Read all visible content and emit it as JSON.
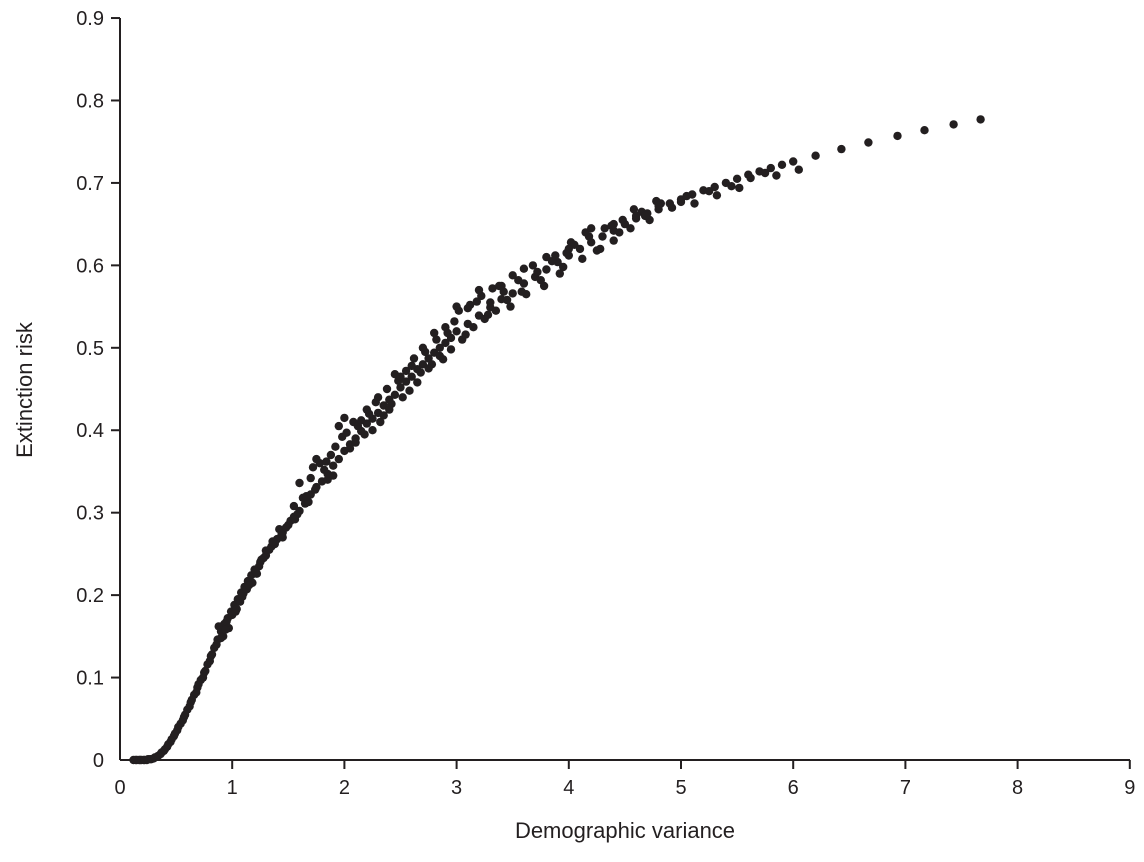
{
  "chart_data": {
    "type": "scatter",
    "title": "",
    "xlabel": "Demographic variance",
    "ylabel": "Extinction risk",
    "xlim": [
      0,
      9
    ],
    "ylim": [
      0,
      0.9
    ],
    "x_ticks": [
      "0",
      "1",
      "2",
      "3",
      "4",
      "5",
      "6",
      "7",
      "8",
      "9"
    ],
    "y_ticks": [
      "0",
      "0.1",
      "0.2",
      "0.3",
      "0.4",
      "0.5",
      "0.6",
      "0.7",
      "0.8",
      "0.9"
    ],
    "grid": false,
    "legend": "none",
    "marker_color": "#231f20",
    "series": [
      {
        "points": [
          [
            0.12,
            0.0
          ],
          [
            0.15,
            0.0
          ],
          [
            0.18,
            0.0
          ],
          [
            0.21,
            0.0
          ],
          [
            0.24,
            0.0
          ],
          [
            0.27,
            0.001
          ],
          [
            0.3,
            0.002
          ],
          [
            0.33,
            0.004
          ],
          [
            0.36,
            0.007
          ],
          [
            0.39,
            0.011
          ],
          [
            0.42,
            0.016
          ],
          [
            0.45,
            0.022
          ],
          [
            0.48,
            0.029
          ],
          [
            0.51,
            0.036
          ],
          [
            0.54,
            0.044
          ],
          [
            0.57,
            0.052
          ],
          [
            0.6,
            0.061
          ],
          [
            0.63,
            0.07
          ],
          [
            0.66,
            0.079
          ],
          [
            0.69,
            0.088
          ],
          [
            0.72,
            0.097
          ],
          [
            0.75,
            0.106
          ],
          [
            0.78,
            0.116
          ],
          [
            0.81,
            0.126
          ],
          [
            0.84,
            0.136
          ],
          [
            0.87,
            0.146
          ],
          [
            0.9,
            0.156
          ],
          [
            0.93,
            0.165
          ],
          [
            0.96,
            0.172
          ],
          [
            0.99,
            0.18
          ],
          [
            1.02,
            0.188
          ],
          [
            1.05,
            0.195
          ],
          [
            1.08,
            0.203
          ],
          [
            1.11,
            0.21
          ],
          [
            1.14,
            0.217
          ],
          [
            1.17,
            0.224
          ],
          [
            1.2,
            0.231
          ],
          [
            1.25,
            0.24
          ],
          [
            1.3,
            0.248
          ],
          [
            1.35,
            0.259
          ],
          [
            1.4,
            0.268
          ],
          [
            1.45,
            0.276
          ],
          [
            1.5,
            0.285
          ],
          [
            1.55,
            0.295
          ],
          [
            1.6,
            0.302
          ],
          [
            1.65,
            0.311
          ],
          [
            1.7,
            0.322
          ],
          [
            1.75,
            0.331
          ],
          [
            1.8,
            0.338
          ],
          [
            1.85,
            0.347
          ],
          [
            1.9,
            0.357
          ],
          [
            1.95,
            0.365
          ],
          [
            2.0,
            0.375
          ],
          [
            2.05,
            0.383
          ],
          [
            2.1,
            0.39
          ],
          [
            2.15,
            0.399
          ],
          [
            2.2,
            0.408
          ],
          [
            2.25,
            0.414
          ],
          [
            2.3,
            0.421
          ],
          [
            2.35,
            0.43
          ],
          [
            2.4,
            0.437
          ],
          [
            2.45,
            0.443
          ],
          [
            2.5,
            0.452
          ],
          [
            2.55,
            0.459
          ],
          [
            2.6,
            0.465
          ],
          [
            2.65,
            0.474
          ],
          [
            2.7,
            0.48
          ],
          [
            2.75,
            0.487
          ],
          [
            2.8,
            0.494
          ],
          [
            2.85,
            0.5
          ],
          [
            2.9,
            0.506
          ],
          [
            2.95,
            0.512
          ],
          [
            3.0,
            0.52
          ],
          [
            3.1,
            0.529
          ],
          [
            3.2,
            0.539
          ],
          [
            3.3,
            0.549
          ],
          [
            3.4,
            0.559
          ],
          [
            3.5,
            0.566
          ],
          [
            3.6,
            0.578
          ],
          [
            3.7,
            0.586
          ],
          [
            3.8,
            0.595
          ],
          [
            3.9,
            0.604
          ],
          [
            4.0,
            0.612
          ],
          [
            4.1,
            0.62
          ],
          [
            4.2,
            0.628
          ],
          [
            4.3,
            0.635
          ],
          [
            4.4,
            0.642
          ],
          [
            4.5,
            0.65
          ],
          [
            4.6,
            0.657
          ],
          [
            4.7,
            0.663
          ],
          [
            4.8,
            0.668
          ],
          [
            4.9,
            0.675
          ],
          [
            5.0,
            0.68
          ],
          [
            5.1,
            0.686
          ],
          [
            5.2,
            0.691
          ],
          [
            5.3,
            0.695
          ],
          [
            5.4,
            0.7
          ],
          [
            5.5,
            0.705
          ],
          [
            5.6,
            0.71
          ],
          [
            5.7,
            0.714
          ],
          [
            5.8,
            0.718
          ],
          [
            5.9,
            0.722
          ],
          [
            6.0,
            0.726
          ],
          [
            6.2,
            0.733
          ],
          [
            6.43,
            0.741
          ],
          [
            6.67,
            0.749
          ],
          [
            6.93,
            0.757
          ],
          [
            7.17,
            0.764
          ],
          [
            7.43,
            0.771
          ],
          [
            7.67,
            0.777
          ],
          [
            0.88,
            0.162
          ],
          [
            0.95,
            0.168
          ],
          [
            1.0,
            0.176
          ],
          [
            1.1,
            0.202
          ],
          [
            1.22,
            0.226
          ],
          [
            1.3,
            0.254
          ],
          [
            1.38,
            0.262
          ],
          [
            1.42,
            0.28
          ],
          [
            1.52,
            0.29
          ],
          [
            1.55,
            0.308
          ],
          [
            1.6,
            0.336
          ],
          [
            1.63,
            0.318
          ],
          [
            1.7,
            0.342
          ],
          [
            1.72,
            0.355
          ],
          [
            1.78,
            0.36
          ],
          [
            1.82,
            0.352
          ],
          [
            1.88,
            0.37
          ],
          [
            1.92,
            0.38
          ],
          [
            1.98,
            0.392
          ],
          [
            2.02,
            0.397
          ],
          [
            2.08,
            0.41
          ],
          [
            2.12,
            0.405
          ],
          [
            2.18,
            0.395
          ],
          [
            2.22,
            0.42
          ],
          [
            2.28,
            0.434
          ],
          [
            2.32,
            0.41
          ],
          [
            2.38,
            0.45
          ],
          [
            2.42,
            0.432
          ],
          [
            2.48,
            0.46
          ],
          [
            2.55,
            0.472
          ],
          [
            2.58,
            0.448
          ],
          [
            2.62,
            0.487
          ],
          [
            2.68,
            0.47
          ],
          [
            2.72,
            0.495
          ],
          [
            2.78,
            0.48
          ],
          [
            2.82,
            0.51
          ],
          [
            2.88,
            0.486
          ],
          [
            2.92,
            0.518
          ],
          [
            2.98,
            0.532
          ],
          [
            3.02,
            0.545
          ],
          [
            3.05,
            0.51
          ],
          [
            3.12,
            0.552
          ],
          [
            3.15,
            0.525
          ],
          [
            3.22,
            0.563
          ],
          [
            3.25,
            0.535
          ],
          [
            3.32,
            0.572
          ],
          [
            3.35,
            0.545
          ],
          [
            3.42,
            0.568
          ],
          [
            3.48,
            0.55
          ],
          [
            3.55,
            0.582
          ],
          [
            3.62,
            0.565
          ],
          [
            3.72,
            0.592
          ],
          [
            3.78,
            0.575
          ],
          [
            3.85,
            0.605
          ],
          [
            3.92,
            0.59
          ],
          [
            3.98,
            0.615
          ],
          [
            4.05,
            0.625
          ],
          [
            4.12,
            0.608
          ],
          [
            4.18,
            0.635
          ],
          [
            4.25,
            0.618
          ],
          [
            4.32,
            0.645
          ],
          [
            4.4,
            0.63
          ],
          [
            4.48,
            0.655
          ],
          [
            4.55,
            0.645
          ],
          [
            4.65,
            0.665
          ],
          [
            4.72,
            0.655
          ],
          [
            4.82,
            0.675
          ],
          [
            4.92,
            0.67
          ],
          [
            5.05,
            0.684
          ],
          [
            5.12,
            0.675
          ],
          [
            5.25,
            0.69
          ],
          [
            5.32,
            0.685
          ],
          [
            5.45,
            0.696
          ],
          [
            5.52,
            0.694
          ],
          [
            5.62,
            0.706
          ],
          [
            5.75,
            0.712
          ],
          [
            5.85,
            0.709
          ],
          [
            6.05,
            0.716
          ],
          [
            0.62,
            0.065
          ],
          [
            0.68,
            0.082
          ],
          [
            0.74,
            0.1
          ],
          [
            0.8,
            0.12
          ],
          [
            0.86,
            0.14
          ],
          [
            0.92,
            0.15
          ],
          [
            0.97,
            0.16
          ],
          [
            1.03,
            0.18
          ],
          [
            1.07,
            0.192
          ],
          [
            1.13,
            0.207
          ],
          [
            1.18,
            0.215
          ],
          [
            1.24,
            0.235
          ],
          [
            1.28,
            0.245
          ],
          [
            1.33,
            0.255
          ],
          [
            1.45,
            0.27
          ],
          [
            1.48,
            0.282
          ],
          [
            1.58,
            0.298
          ],
          [
            1.68,
            0.313
          ],
          [
            1.75,
            0.365
          ],
          [
            1.85,
            0.34
          ],
          [
            1.95,
            0.405
          ],
          [
            2.05,
            0.378
          ],
          [
            2.15,
            0.412
          ],
          [
            2.25,
            0.4
          ],
          [
            2.35,
            0.418
          ],
          [
            2.45,
            0.468
          ],
          [
            2.52,
            0.44
          ],
          [
            2.65,
            0.458
          ],
          [
            2.75,
            0.475
          ],
          [
            2.85,
            0.49
          ],
          [
            2.95,
            0.498
          ],
          [
            3.08,
            0.516
          ],
          [
            3.18,
            0.556
          ],
          [
            3.28,
            0.54
          ],
          [
            3.38,
            0.575
          ],
          [
            3.45,
            0.558
          ],
          [
            3.58,
            0.568
          ],
          [
            3.68,
            0.6
          ],
          [
            3.75,
            0.582
          ],
          [
            3.88,
            0.612
          ],
          [
            3.95,
            0.598
          ],
          [
            4.02,
            0.628
          ],
          [
            4.15,
            0.64
          ],
          [
            4.28,
            0.62
          ],
          [
            4.38,
            0.648
          ],
          [
            4.45,
            0.64
          ],
          [
            4.58,
            0.668
          ],
          [
            4.68,
            0.66
          ],
          [
            4.78,
            0.678
          ],
          [
            5.0,
            0.677
          ],
          [
            0.52,
            0.04
          ],
          [
            0.56,
            0.048
          ],
          [
            0.58,
            0.055
          ],
          [
            0.64,
            0.073
          ],
          [
            0.7,
            0.092
          ],
          [
            0.76,
            0.108
          ],
          [
            0.82,
            0.128
          ],
          [
            0.9,
            0.148
          ],
          [
            0.94,
            0.158
          ],
          [
            1.04,
            0.183
          ],
          [
            1.09,
            0.198
          ],
          [
            1.15,
            0.212
          ],
          [
            1.21,
            0.229
          ],
          [
            1.26,
            0.243
          ],
          [
            1.36,
            0.265
          ],
          [
            1.44,
            0.274
          ],
          [
            1.56,
            0.292
          ],
          [
            1.66,
            0.32
          ],
          [
            1.74,
            0.328
          ],
          [
            1.84,
            0.362
          ],
          [
            1.9,
            0.345
          ],
          [
            2.0,
            0.415
          ],
          [
            2.1,
            0.385
          ],
          [
            2.2,
            0.425
          ],
          [
            2.3,
            0.44
          ],
          [
            2.4,
            0.425
          ],
          [
            2.5,
            0.465
          ],
          [
            2.6,
            0.478
          ],
          [
            2.7,
            0.5
          ],
          [
            2.8,
            0.518
          ],
          [
            2.9,
            0.525
          ],
          [
            3.0,
            0.55
          ],
          [
            3.1,
            0.548
          ],
          [
            3.2,
            0.57
          ],
          [
            3.3,
            0.555
          ],
          [
            3.4,
            0.575
          ],
          [
            3.5,
            0.588
          ],
          [
            3.6,
            0.596
          ],
          [
            3.8,
            0.61
          ],
          [
            4.0,
            0.62
          ],
          [
            4.2,
            0.645
          ],
          [
            4.4,
            0.65
          ],
          [
            4.6,
            0.66
          ],
          [
            4.8,
            0.672
          ],
          [
            0.14,
            0.0
          ],
          [
            0.17,
            0.0
          ],
          [
            0.19,
            0.0
          ],
          [
            0.22,
            0.0
          ],
          [
            0.25,
            0.001
          ],
          [
            0.28,
            0.001
          ],
          [
            0.31,
            0.003
          ],
          [
            0.34,
            0.005
          ],
          [
            0.37,
            0.009
          ],
          [
            0.4,
            0.013
          ],
          [
            0.43,
            0.019
          ],
          [
            0.46,
            0.025
          ],
          [
            0.49,
            0.032
          ]
        ]
      }
    ]
  }
}
